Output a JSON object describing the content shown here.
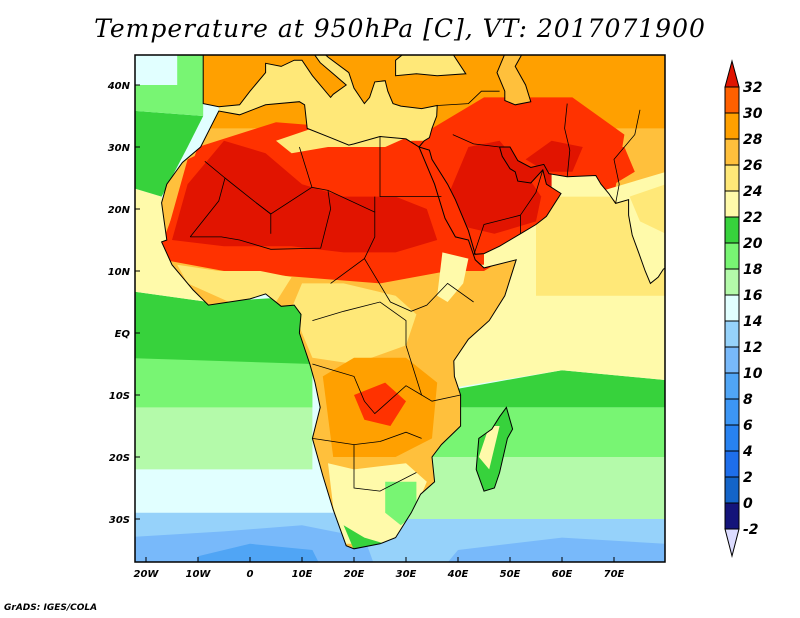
{
  "title": "Temperature at 950hPa [C], VT: 2017071900",
  "footer": "GrADS: IGES/COLA",
  "lon_ticks": [
    {
      "lon": -20,
      "label": "20W"
    },
    {
      "lon": -10,
      "label": "10W"
    },
    {
      "lon": 0,
      "label": "0"
    },
    {
      "lon": 10,
      "label": "10E"
    },
    {
      "lon": 20,
      "label": "20E"
    },
    {
      "lon": 30,
      "label": "30E"
    },
    {
      "lon": 40,
      "label": "40E"
    },
    {
      "lon": 50,
      "label": "50E"
    },
    {
      "lon": 60,
      "label": "60E"
    },
    {
      "lon": 70,
      "label": "70E"
    }
  ],
  "lat_ticks": [
    {
      "lat": 40,
      "label": "40N"
    },
    {
      "lat": 30,
      "label": "30N"
    },
    {
      "lat": 20,
      "label": "20N"
    },
    {
      "lat": 10,
      "label": "10N"
    },
    {
      "lat": 0,
      "label": "EQ"
    },
    {
      "lat": -10,
      "label": "10S"
    },
    {
      "lat": -20,
      "label": "20S"
    },
    {
      "lat": -30,
      "label": "30S"
    }
  ],
  "domain": {
    "lon": [
      -22,
      80
    ],
    "lat": [
      -37,
      45
    ]
  },
  "colorbar": {
    "levels": [
      "-2",
      "0",
      "2",
      "4",
      "6",
      "8",
      "10",
      "12",
      "14",
      "16",
      "18",
      "20",
      "22",
      "24",
      "26",
      "28",
      "30",
      "32"
    ],
    "colors": [
      "#dcdcff",
      "#14147a",
      "#1464c8",
      "#1e6eeb",
      "#2882f0",
      "#3c96f5",
      "#50a5f5",
      "#78b9fa",
      "#96d2fa",
      "#e1ffff",
      "#b4faaa",
      "#78f573",
      "#37d23c",
      "#fffaaa",
      "#ffe878",
      "#ffc03c",
      "#ffa000",
      "#ff6000",
      "#ff3200",
      "#e11400"
    ]
  }
}
